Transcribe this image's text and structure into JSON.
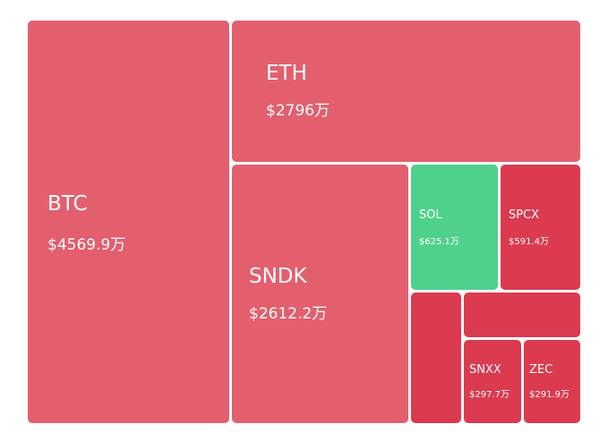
{
  "chart_data": {
    "type": "treemap",
    "colors": {
      "up": "#4fd18b",
      "down_soft": "#e35f6e",
      "down_strong": "#db3a4f"
    },
    "tiles": [
      {
        "id": "btc",
        "label": "BTC",
        "value_text": "$4569.9万",
        "value": 4569.9,
        "direction": "down_soft"
      },
      {
        "id": "eth",
        "label": "ETH",
        "value_text": "$2796万",
        "value": 2796,
        "direction": "down_soft"
      },
      {
        "id": "sndk",
        "label": "SNDK",
        "value_text": "$2612.2万",
        "value": 2612.2,
        "direction": "down_soft"
      },
      {
        "id": "sol",
        "label": "SOL",
        "value_text": "$625.1万",
        "value": 625.1,
        "direction": "up"
      },
      {
        "id": "spcx",
        "label": "SPCX",
        "value_text": "$591.4万",
        "value": 591.4,
        "direction": "down_strong"
      },
      {
        "id": "unlabeled-a",
        "label": "",
        "value_text": "",
        "direction": "down_strong"
      },
      {
        "id": "unlabeled-b",
        "label": "",
        "value_text": "",
        "direction": "down_strong"
      },
      {
        "id": "snxx",
        "label": "SNXX",
        "value_text": "$297.7万",
        "value": 297.7,
        "direction": "down_strong"
      },
      {
        "id": "zec",
        "label": "ZEC",
        "value_text": "$291.9万",
        "value": 291.9,
        "direction": "down_strong"
      }
    ]
  }
}
